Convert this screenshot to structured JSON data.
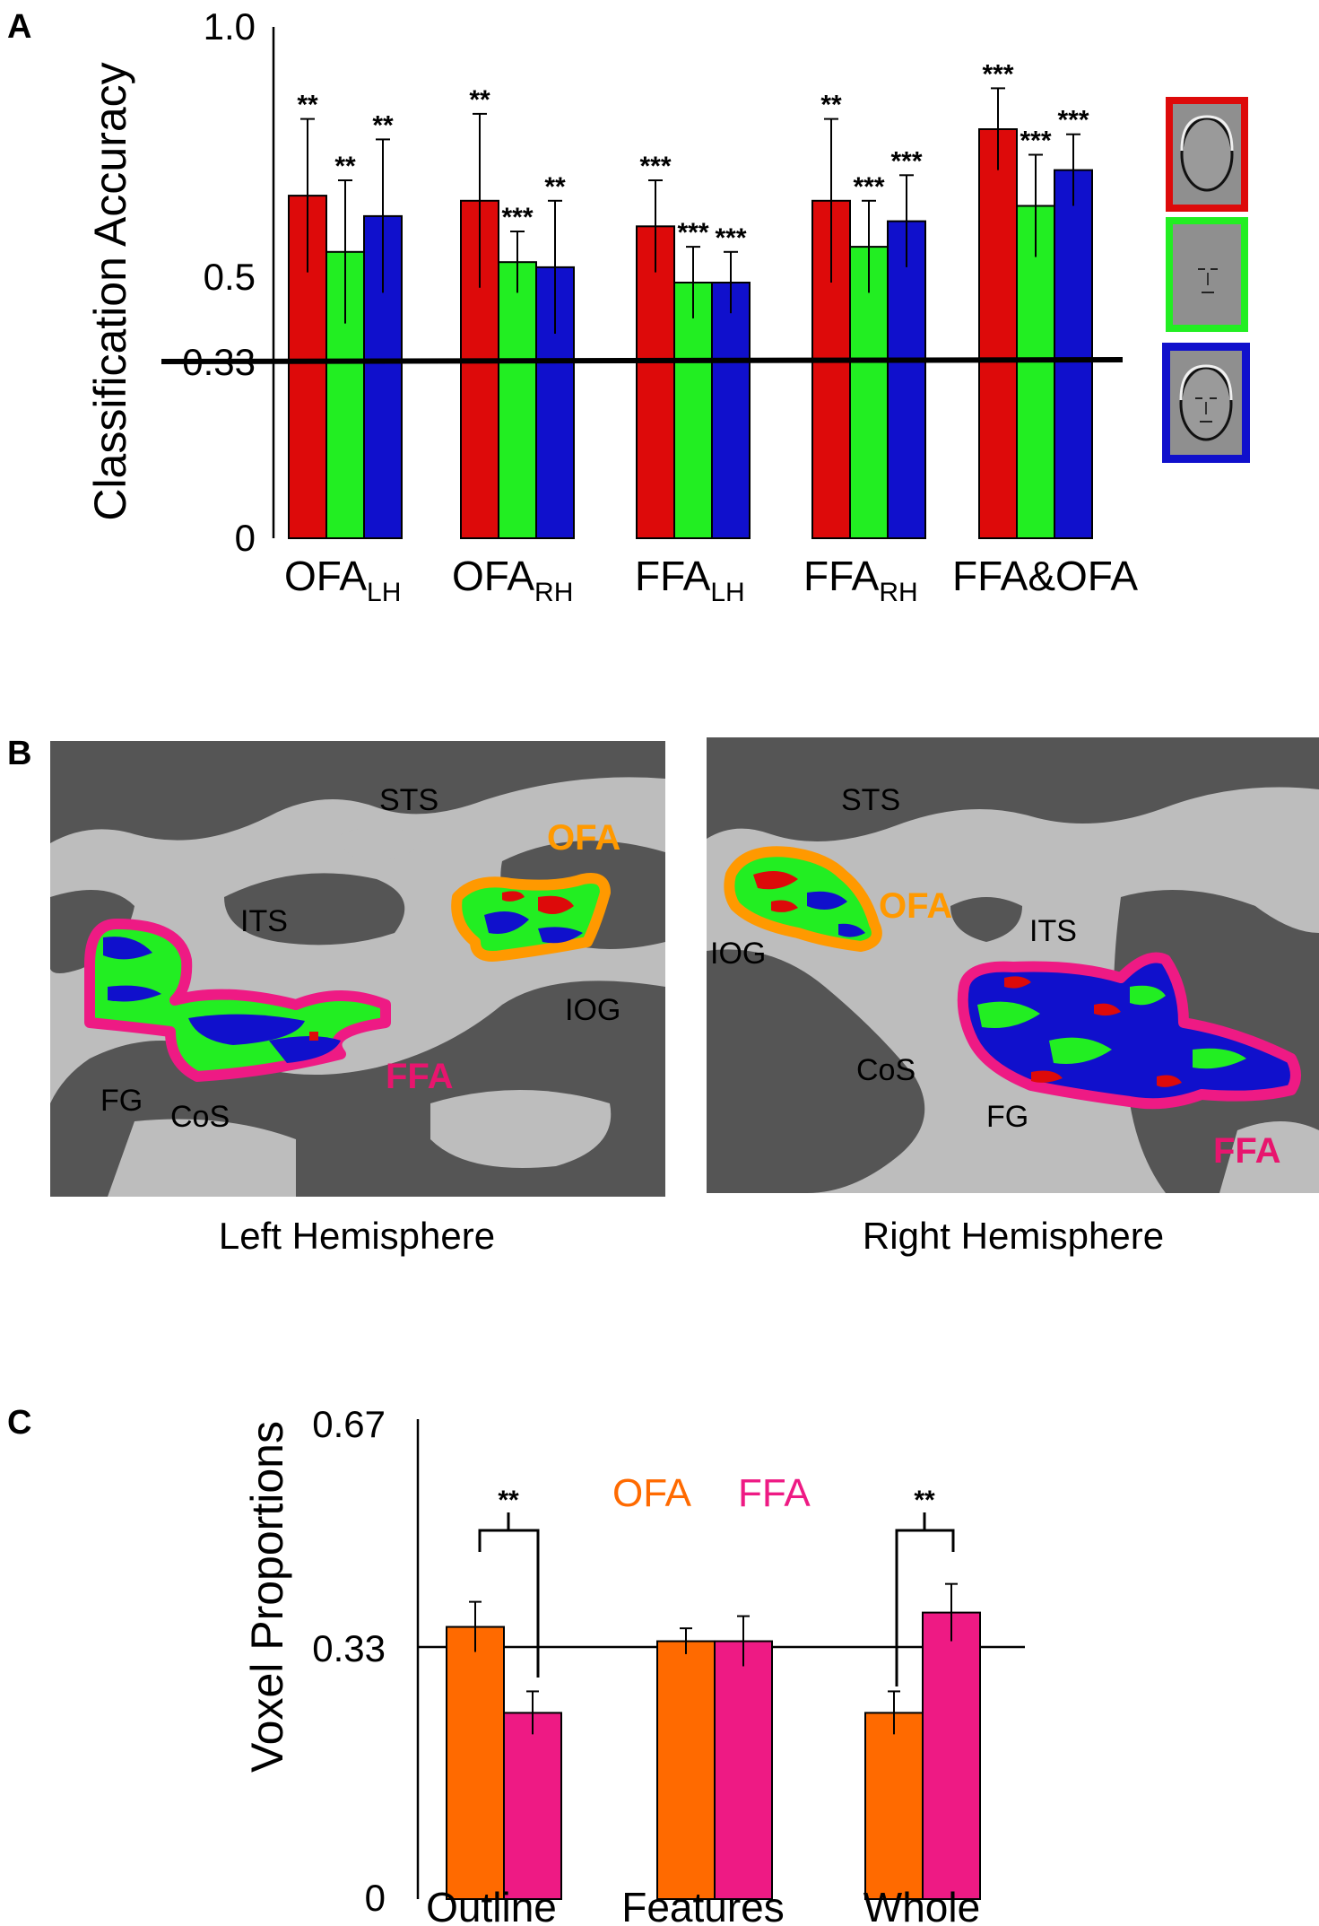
{
  "colors": {
    "outline": "#dd0a0a",
    "features": "#22ee22",
    "whole": "#1010cc",
    "ofa": "#ff6a00",
    "ffa": "#ee1a84",
    "ofa_label": "#ff9900",
    "ffa_label": "#e8156e",
    "sulcus": "#555555",
    "gyrus": "#bdbdbd"
  },
  "panel_a": {
    "letter": "A",
    "ylabel": "Classification Accuracy",
    "yticks": [
      "0",
      "0.33",
      "0.5",
      "1.0"
    ],
    "categories": [
      {
        "main": "OFA",
        "sub": "LH"
      },
      {
        "main": "OFA",
        "sub": "RH"
      },
      {
        "main": "FFA",
        "sub": "LH"
      },
      {
        "main": "FFA",
        "sub": "RH"
      },
      {
        "main": "FFA&OFA",
        "sub": ""
      }
    ],
    "legend_icons": [
      "face-outline-icon",
      "face-features-icon",
      "whole-face-icon"
    ]
  },
  "panel_b": {
    "letter": "B",
    "left": {
      "caption": "Left Hemisphere",
      "labels": {
        "sts": "STS",
        "its": "ITS",
        "iog": "IOG",
        "fg": "FG",
        "cos": "CoS",
        "ofa": "OFA",
        "ffa": "FFA"
      }
    },
    "right": {
      "caption": "Right Hemisphere",
      "labels": {
        "sts": "STS",
        "its": "ITS",
        "iog": "IOG",
        "fg": "FG",
        "cos": "CoS",
        "ofa": "OFA",
        "ffa": "FFA"
      }
    }
  },
  "panel_c": {
    "letter": "C",
    "ylabel": "Voxel Proportions",
    "yticks": [
      "0",
      "0.33",
      "0.67"
    ],
    "legend": {
      "ofa": "OFA",
      "ffa": "FFA"
    },
    "sig_left": "**",
    "sig_right": "**"
  },
  "chart_data": [
    {
      "type": "bar",
      "panel": "A",
      "ylabel": "Classification Accuracy",
      "ylim": [
        0,
        1.0
      ],
      "reference_line": 0.33,
      "categories": [
        "OFA_LH",
        "OFA_RH",
        "FFA_LH",
        "FFA_RH",
        "FFA&OFA"
      ],
      "series": [
        {
          "color": "#dd0a0a",
          "values": [
            0.67,
            0.66,
            0.61,
            0.66,
            0.8
          ],
          "errors": [
            0.15,
            0.17,
            0.09,
            0.16,
            0.08
          ],
          "stars": [
            "**",
            "**",
            "***",
            "**",
            "***"
          ]
        },
        {
          "color": "#22ee22",
          "values": [
            0.56,
            0.54,
            0.5,
            0.57,
            0.65
          ],
          "errors": [
            0.14,
            0.06,
            0.07,
            0.09,
            0.1
          ],
          "stars": [
            "**",
            "***",
            "***",
            "***",
            "***"
          ]
        },
        {
          "color": "#1010cc",
          "values": [
            0.63,
            0.53,
            0.5,
            0.62,
            0.72
          ],
          "errors": [
            0.15,
            0.13,
            0.06,
            0.09,
            0.07
          ],
          "stars": [
            "**",
            "**",
            "***",
            "***",
            "***"
          ]
        }
      ]
    },
    {
      "type": "bar",
      "panel": "C",
      "ylabel": "Voxel Proportions",
      "ylim": [
        0,
        0.67
      ],
      "reference_line": 0.33,
      "categories": [
        "Outline",
        "Features",
        "Whole"
      ],
      "series": [
        {
          "name": "OFA",
          "color": "#ff6a00",
          "values": [
            0.38,
            0.36,
            0.26
          ],
          "errors": [
            0.035,
            0.018,
            0.03
          ]
        },
        {
          "name": "FFA",
          "color": "#ee1a84",
          "values": [
            0.26,
            0.36,
            0.4
          ],
          "errors": [
            0.03,
            0.035,
            0.04
          ]
        }
      ]
    }
  ]
}
